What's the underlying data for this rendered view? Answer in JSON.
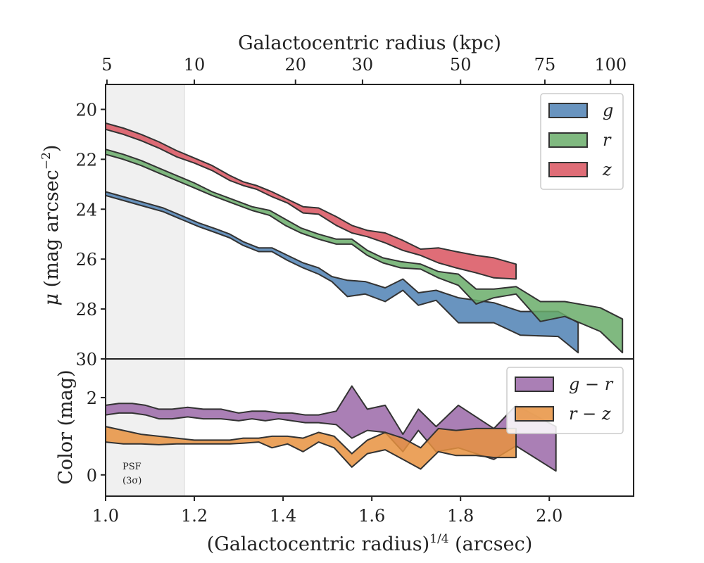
{
  "chart_data": [
    {
      "type": "area",
      "panel": "top",
      "x_label": "(Galactocentric radius)^1/4 (arcsec)",
      "x_label_main": "(Galactocentric radius)",
      "x_label_sup": "1/4",
      "x_label_unit": " (arcsec)",
      "top_axis_label": "Galactocentric radius (kpc)",
      "top_ticks": [
        {
          "label": "5",
          "x": 1.003
        },
        {
          "label": "10",
          "x": 1.2
        },
        {
          "label": "20",
          "x": 1.428
        },
        {
          "label": "30",
          "x": 1.579
        },
        {
          "label": "50",
          "x": 1.8
        },
        {
          "label": "75",
          "x": 1.99
        },
        {
          "label": "100",
          "x": 2.138
        }
      ],
      "y_label": "μ (mag arcsec⁻²)",
      "y_label_mu": "μ",
      "y_label_rest": " (mag arcsec",
      "y_label_sup": "−2",
      "y_label_close": ")",
      "xlim": [
        1.0,
        2.19
      ],
      "ylim": [
        30.0,
        19.0
      ],
      "y_inverted": true,
      "y_ticks": [
        20,
        22,
        24,
        26,
        28,
        30
      ],
      "psf_region": [
        1.0,
        1.178
      ],
      "legend": {
        "placement": "top-right",
        "entries": [
          "g",
          "r",
          "z"
        ]
      },
      "series": [
        {
          "name": "g",
          "color": "#4f81b4",
          "x": [
            1.0,
            1.04,
            1.08,
            1.13,
            1.17,
            1.21,
            1.25,
            1.28,
            1.31,
            1.345,
            1.375,
            1.41,
            1.445,
            1.48,
            1.51,
            1.545,
            1.585,
            1.63,
            1.67,
            1.705,
            1.745,
            1.795,
            1.875,
            1.935,
            2.02,
            2.065
          ],
          "lower": [
            23.3,
            23.5,
            23.7,
            23.95,
            24.25,
            24.55,
            24.8,
            25.0,
            25.3,
            25.55,
            25.55,
            25.85,
            26.15,
            26.35,
            26.7,
            26.85,
            26.9,
            27.15,
            26.8,
            27.35,
            27.25,
            27.55,
            27.75,
            28.1,
            28.1,
            28.55
          ],
          "upper": [
            23.45,
            23.65,
            23.85,
            24.1,
            24.4,
            24.7,
            24.95,
            25.15,
            25.45,
            25.7,
            25.7,
            26.05,
            26.35,
            26.6,
            26.9,
            27.5,
            27.4,
            27.7,
            27.25,
            27.85,
            27.65,
            28.55,
            28.55,
            29.05,
            29.1,
            29.75
          ]
        },
        {
          "name": "r",
          "color": "#6aad6a",
          "x": [
            1.0,
            1.04,
            1.08,
            1.12,
            1.16,
            1.2,
            1.24,
            1.285,
            1.33,
            1.37,
            1.405,
            1.44,
            1.48,
            1.52,
            1.555,
            1.59,
            1.625,
            1.665,
            1.71,
            1.75,
            1.795,
            1.835,
            1.875,
            1.925,
            1.98,
            2.035,
            2.115,
            2.165
          ],
          "lower": [
            21.6,
            21.8,
            22.05,
            22.35,
            22.65,
            22.95,
            23.3,
            23.6,
            23.9,
            24.05,
            24.4,
            24.75,
            25.0,
            25.2,
            25.2,
            25.65,
            25.95,
            26.1,
            26.2,
            26.5,
            26.6,
            27.2,
            27.2,
            27.1,
            27.7,
            27.7,
            27.95,
            28.4
          ],
          "upper": [
            21.8,
            22.0,
            22.25,
            22.55,
            22.85,
            23.15,
            23.45,
            23.75,
            24.05,
            24.25,
            24.65,
            24.95,
            25.2,
            25.4,
            25.4,
            25.85,
            26.15,
            26.35,
            26.4,
            26.75,
            27.05,
            27.8,
            27.55,
            27.4,
            28.5,
            28.3,
            28.9,
            29.75
          ]
        },
        {
          "name": "z",
          "color": "#d9545f",
          "x": [
            1.0,
            1.04,
            1.08,
            1.12,
            1.16,
            1.2,
            1.24,
            1.28,
            1.31,
            1.34,
            1.375,
            1.41,
            1.445,
            1.48,
            1.52,
            1.555,
            1.59,
            1.63,
            1.67,
            1.71,
            1.75,
            1.79,
            1.835,
            1.875,
            1.925
          ],
          "lower": [
            20.55,
            20.75,
            21.0,
            21.3,
            21.65,
            21.95,
            22.25,
            22.65,
            22.9,
            23.05,
            23.3,
            23.6,
            23.9,
            23.95,
            24.3,
            24.65,
            24.85,
            24.95,
            25.25,
            25.6,
            25.55,
            25.7,
            25.85,
            25.95,
            26.2
          ],
          "upper": [
            20.8,
            21.0,
            21.25,
            21.55,
            21.9,
            22.15,
            22.45,
            22.85,
            23.05,
            23.2,
            23.5,
            23.75,
            24.15,
            24.2,
            24.65,
            24.95,
            25.1,
            25.35,
            25.65,
            25.85,
            26.15,
            26.35,
            26.55,
            26.75,
            26.8
          ]
        }
      ]
    },
    {
      "type": "area",
      "panel": "bottom",
      "y_label": "Color (mag)",
      "xlim": [
        1.0,
        2.19
      ],
      "x_ticks": [
        1.0,
        1.2,
        1.4,
        1.6,
        1.8,
        2.0
      ],
      "x_tick_labels": [
        "1.0",
        "1.2",
        "1.4",
        "1.6",
        "1.8",
        "2.0"
      ],
      "ylim": [
        -0.55,
        3.0
      ],
      "y_ticks": [
        0,
        2
      ],
      "psf_region": [
        1.0,
        1.178
      ],
      "annotation": [
        "PSF",
        "(3σ)"
      ],
      "legend": {
        "placement": "top-right",
        "entries": [
          "g − r",
          "r − z"
        ]
      },
      "series": [
        {
          "name": "g − r",
          "color": "#9b69a8",
          "x": [
            1.0,
            1.03,
            1.06,
            1.09,
            1.12,
            1.15,
            1.185,
            1.22,
            1.26,
            1.3,
            1.33,
            1.36,
            1.39,
            1.42,
            1.45,
            1.48,
            1.52,
            1.555,
            1.59,
            1.63,
            1.67,
            1.705,
            1.745,
            1.795,
            1.875,
            1.925,
            2.015
          ],
          "lower": [
            1.55,
            1.6,
            1.6,
            1.55,
            1.45,
            1.45,
            1.5,
            1.45,
            1.45,
            1.4,
            1.45,
            1.4,
            1.45,
            1.4,
            1.35,
            1.35,
            1.3,
            0.95,
            1.15,
            1.1,
            0.6,
            1.15,
            0.6,
            0.7,
            0.4,
            0.75,
            0.1
          ],
          "upper": [
            1.8,
            1.85,
            1.85,
            1.8,
            1.7,
            1.7,
            1.75,
            1.7,
            1.7,
            1.6,
            1.65,
            1.65,
            1.6,
            1.6,
            1.55,
            1.55,
            1.65,
            2.3,
            1.7,
            1.8,
            1.05,
            1.7,
            1.25,
            1.8,
            1.2,
            1.8,
            1.25
          ]
        },
        {
          "name": "r − z",
          "color": "#e8923f",
          "x": [
            1.0,
            1.04,
            1.08,
            1.12,
            1.16,
            1.2,
            1.24,
            1.28,
            1.31,
            1.345,
            1.375,
            1.41,
            1.445,
            1.48,
            1.515,
            1.555,
            1.59,
            1.63,
            1.67,
            1.71,
            1.75,
            1.79,
            1.835,
            1.875,
            1.925
          ],
          "lower": [
            0.85,
            0.8,
            0.8,
            0.78,
            0.8,
            0.8,
            0.8,
            0.8,
            0.82,
            0.85,
            0.7,
            0.8,
            0.6,
            0.85,
            0.7,
            0.2,
            0.55,
            0.65,
            0.4,
            0.15,
            0.6,
            0.5,
            0.5,
            0.45,
            0.45
          ],
          "upper": [
            1.25,
            1.15,
            1.05,
            1.0,
            0.95,
            0.9,
            0.9,
            0.9,
            0.95,
            0.95,
            1.0,
            1.0,
            0.95,
            1.1,
            1.0,
            0.55,
            0.9,
            1.1,
            0.95,
            0.7,
            1.2,
            1.15,
            1.2,
            1.2,
            1.2
          ]
        }
      ]
    }
  ]
}
